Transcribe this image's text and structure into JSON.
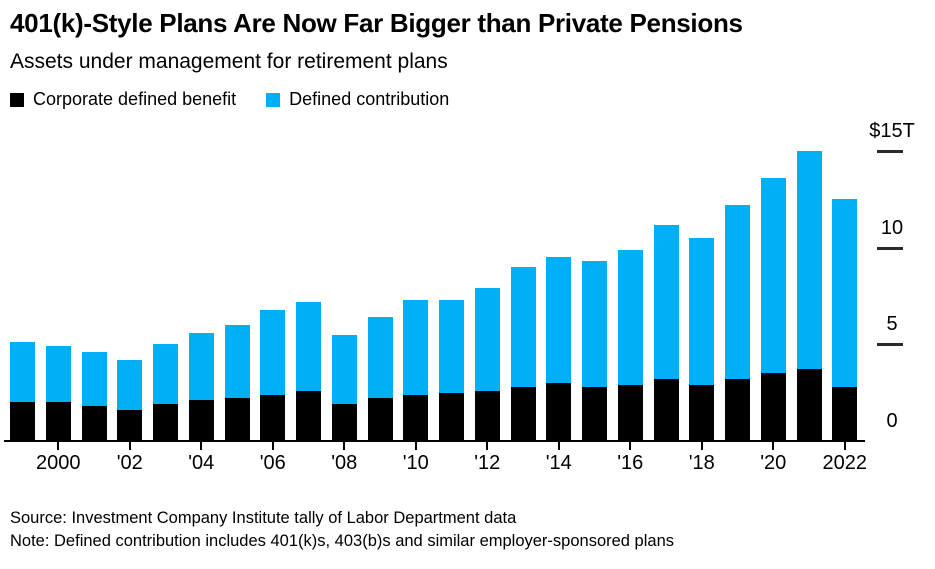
{
  "title": "401(k)-Style Plans Are Now Far Bigger than Private Pensions",
  "subtitle": "Assets under management for retirement plans",
  "legend": [
    {
      "label": "Corporate defined benefit",
      "color": "#000000"
    },
    {
      "label": "Defined contribution",
      "color": "#00aff5"
    }
  ],
  "source": "Source: Investment Company Institute tally of Labor Department data",
  "note": "Note: Defined contribution includes 401(k)s, 403(b)s and similar employer-sponsored plans",
  "chart_data": {
    "type": "bar",
    "stacked": true,
    "unit": "trillion USD",
    "title": "401(k)-Style Plans Are Now Far Bigger than Private Pensions",
    "subtitle": "Assets under management for retirement plans",
    "categories": [
      1999,
      2000,
      2001,
      2002,
      2003,
      2004,
      2005,
      2006,
      2007,
      2008,
      2009,
      2010,
      2011,
      2012,
      2013,
      2014,
      2015,
      2016,
      2017,
      2018,
      2019,
      2020,
      2021,
      2022
    ],
    "series": [
      {
        "name": "Corporate defined benefit",
        "color": "#000000",
        "values": [
          2.0,
          2.0,
          1.8,
          1.6,
          1.9,
          2.1,
          2.2,
          2.4,
          2.6,
          1.9,
          2.2,
          2.4,
          2.5,
          2.6,
          2.8,
          3.0,
          2.8,
          2.9,
          3.2,
          2.9,
          3.2,
          3.5,
          3.7,
          2.8
        ]
      },
      {
        "name": "Defined contribution",
        "color": "#00aff5",
        "values": [
          3.1,
          2.9,
          2.8,
          2.6,
          3.1,
          3.5,
          3.8,
          4.4,
          4.6,
          3.6,
          4.2,
          4.9,
          4.8,
          5.3,
          6.2,
          6.5,
          6.5,
          7.0,
          8.0,
          7.6,
          9.0,
          10.1,
          11.3,
          9.7
        ]
      }
    ],
    "ylim": [
      0,
      15
    ],
    "yticks": [
      0,
      5,
      10,
      15
    ],
    "ytick_labels": [
      "0",
      "5",
      "10",
      "$15T"
    ],
    "xtick_years": [
      2000,
      2002,
      2004,
      2006,
      2008,
      2010,
      2012,
      2014,
      2016,
      2018,
      2020,
      2022
    ],
    "xtick_labels": [
      "2000",
      "'02",
      "'04",
      "'06",
      "'08",
      "'10",
      "'12",
      "'14",
      "'16",
      "'18",
      "'20",
      "2022"
    ],
    "grid": "right-side tick dashes only",
    "legend_position": "top-left"
  }
}
